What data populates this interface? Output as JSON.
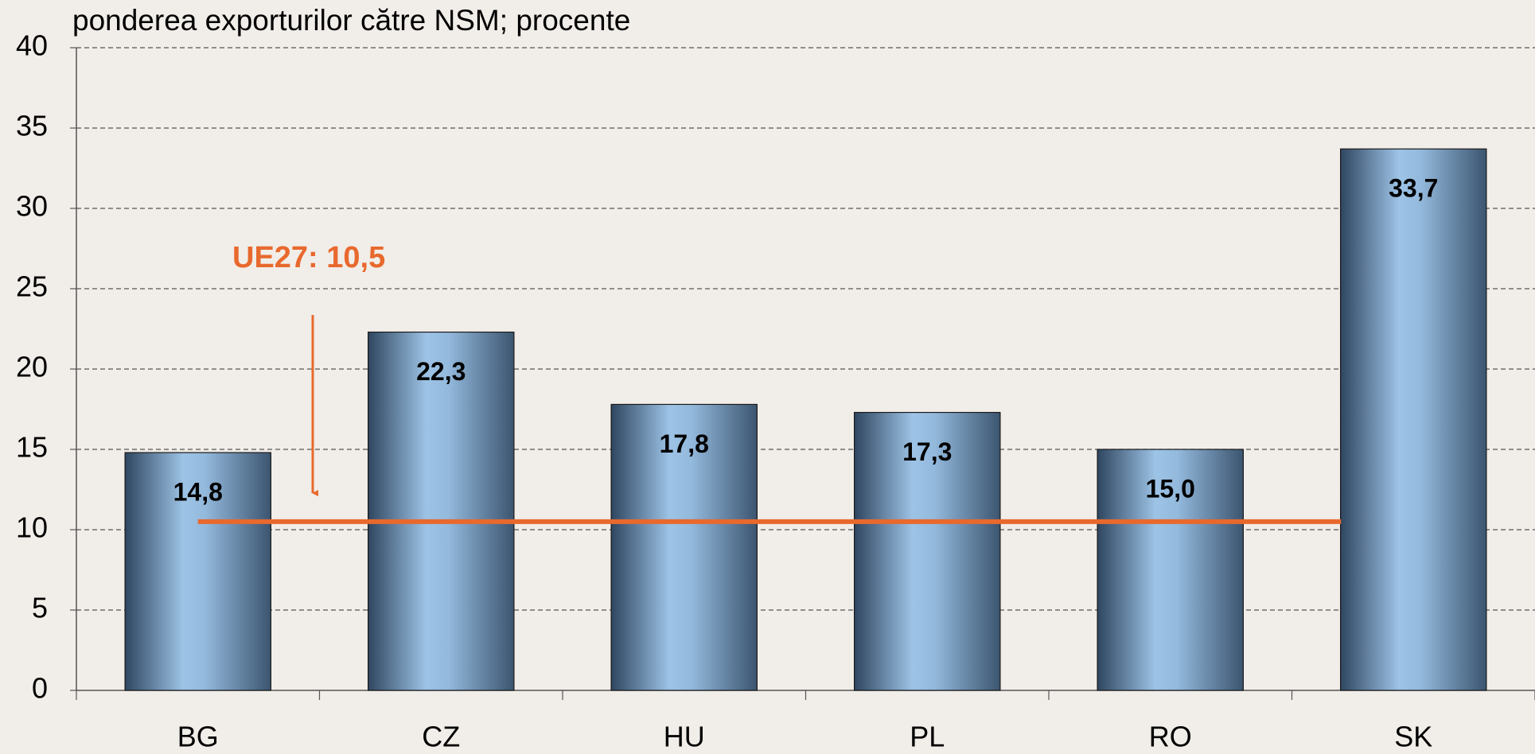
{
  "chart_data": {
    "type": "bar",
    "title": "ponderea exporturilor către NSM; procente",
    "categories": [
      "BG",
      "CZ",
      "HU",
      "PL",
      "RO",
      "SK"
    ],
    "values": [
      14.8,
      22.3,
      17.8,
      17.3,
      15.0,
      33.7
    ],
    "value_labels": [
      "14,8",
      "22,3",
      "17,8",
      "17,3",
      "15,0",
      "33,7"
    ],
    "color": "#9dc3e6",
    "ylim": [
      0,
      40
    ],
    "yticks": [
      0,
      5,
      10,
      15,
      20,
      25,
      30,
      35,
      40
    ],
    "grid": true,
    "reference": {
      "label": "UE27: 10,5",
      "value": 10.5,
      "color": "#e8692d"
    }
  }
}
